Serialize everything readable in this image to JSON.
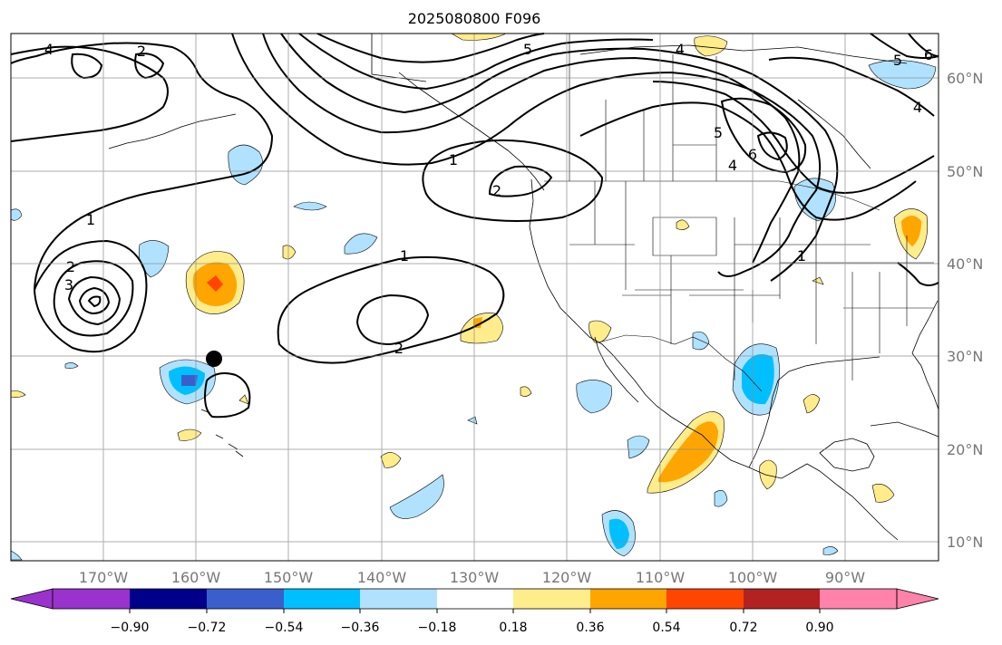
{
  "title": "2025080800 F096",
  "map": {
    "lon_labels": [
      "170°W",
      "160°W",
      "150°W",
      "140°W",
      "130°W",
      "120°W",
      "110°W",
      "100°W",
      "90°W"
    ],
    "lat_labels": [
      "60°N",
      "50°N",
      "40°N",
      "30°N",
      "20°N",
      "10°N"
    ],
    "contour_labels": [
      "1",
      "1",
      "1",
      "1",
      "2",
      "2",
      "2",
      "2",
      "3",
      "4",
      "4",
      "4",
      "4",
      "5",
      "5",
      "5",
      "6",
      "6"
    ],
    "marker": "black-dot"
  },
  "colorbar": {
    "colors": [
      "#9a32cd",
      "#00008b",
      "#3a5fcd",
      "#00bfff",
      "#b0e2ff",
      "#ffffff",
      "#ffec8b",
      "#ffa500",
      "#ff4500",
      "#b22222",
      "#ff82ab"
    ],
    "tick_labels": [
      "−0.90",
      "−0.72",
      "−0.54",
      "−0.36",
      "−0.18",
      "0.18",
      "0.36",
      "0.54",
      "0.72",
      "0.90"
    ]
  }
}
